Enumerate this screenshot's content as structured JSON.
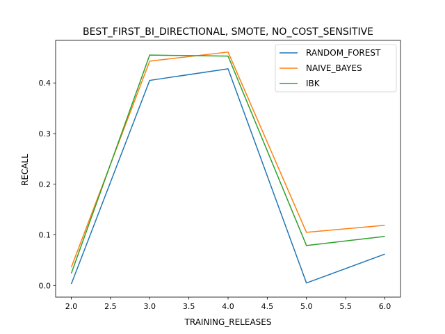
{
  "chart_data": {
    "type": "line",
    "title": "BEST_FIRST_BI_DIRECTIONAL, SMOTE, NO_COST_SENSITIVE",
    "xlabel": "TRAINING_RELEASES",
    "ylabel": "RECALL",
    "x": [
      2.0,
      3.0,
      4.0,
      5.0,
      6.0
    ],
    "xlim": [
      1.8,
      6.2
    ],
    "ylim": [
      -0.0229,
      0.4841
    ],
    "xticks": [
      2.0,
      2.5,
      3.0,
      3.5,
      4.0,
      4.5,
      5.0,
      5.5,
      6.0
    ],
    "xtick_labels": [
      "2.0",
      "2.5",
      "3.0",
      "3.5",
      "4.0",
      "4.5",
      "5.0",
      "5.5",
      "6.0"
    ],
    "yticks": [
      0.0,
      0.1,
      0.2,
      0.3,
      0.4
    ],
    "ytick_labels": [
      "0.0",
      "0.1",
      "0.2",
      "0.3",
      "0.4"
    ],
    "grid": false,
    "legend_position": "top-right",
    "series": [
      {
        "name": "RANDOM_FOREST",
        "color": "#1f77b4",
        "values": [
          0.003,
          0.405,
          0.428,
          0.005,
          0.062
        ]
      },
      {
        "name": "NAIVE_BAYES",
        "color": "#ff7f0e",
        "values": [
          0.036,
          0.443,
          0.461,
          0.105,
          0.119
        ]
      },
      {
        "name": "IBK",
        "color": "#2ca02c",
        "values": [
          0.024,
          0.455,
          0.453,
          0.079,
          0.097
        ]
      }
    ]
  }
}
